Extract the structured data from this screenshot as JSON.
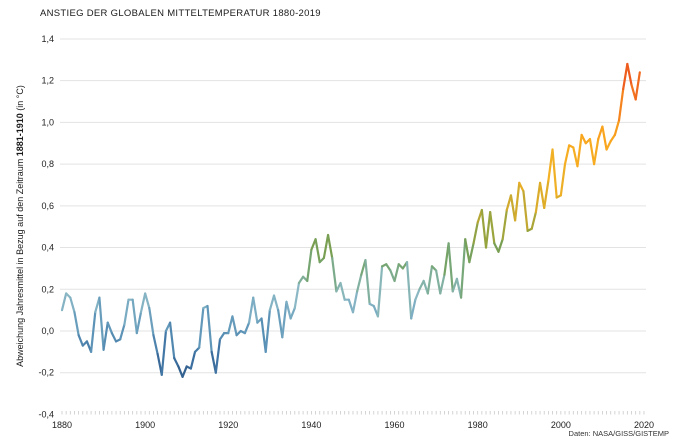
{
  "title": "ANSTIEG DER GLOBALEN MITTELTEMPERATUR 1880-2019",
  "source": "Daten: NASA/GISS/GISTEMP",
  "y_axis_label": {
    "prefix": "Abweichung Jahresmittel in Bezug auf den Zeitraum ",
    "bold": "1881-1910",
    "suffix": " (in °C)"
  },
  "chart_data": {
    "type": "line",
    "title": "ANSTIEG DER GLOBALEN MITTELTEMPERATUR 1880-2019",
    "ylabel": "Abweichung Jahresmittel in Bezug auf den Zeitraum 1881-1910 (in °C)",
    "xlabel": "",
    "x_start": 1880,
    "x_end": 2019,
    "xlim": [
      1879,
      2021
    ],
    "ylim": [
      -0.4,
      1.4
    ],
    "grid": true,
    "legend": "none",
    "x_ticks": [
      1880,
      1900,
      1920,
      1940,
      1960,
      1980,
      2000,
      2020
    ],
    "y_ticks": [
      {
        "v": 1.4,
        "label": "1,4"
      },
      {
        "v": 1.2,
        "label": "1,2"
      },
      {
        "v": 1.0,
        "label": "1,0"
      },
      {
        "v": 0.8,
        "label": "0,8"
      },
      {
        "v": 0.6,
        "label": "0,6"
      },
      {
        "v": 0.4,
        "label": "0,4"
      },
      {
        "v": 0.2,
        "label": "0,2"
      },
      {
        "v": 0.0,
        "label": "0,0"
      },
      {
        "v": -0.2,
        "label": "-0,2"
      },
      {
        "v": -0.4,
        "label": "-0,4"
      }
    ],
    "values": [
      0.1,
      0.18,
      0.16,
      0.09,
      -0.02,
      -0.07,
      -0.05,
      -0.1,
      0.09,
      0.16,
      -0.09,
      0.04,
      -0.01,
      -0.05,
      -0.04,
      0.03,
      0.15,
      0.15,
      -0.01,
      0.09,
      0.18,
      0.11,
      -0.02,
      -0.11,
      -0.21,
      0.0,
      0.04,
      -0.13,
      -0.17,
      -0.22,
      -0.17,
      -0.18,
      -0.1,
      -0.08,
      0.11,
      0.12,
      -0.1,
      -0.2,
      -0.04,
      -0.01,
      -0.01,
      0.07,
      -0.02,
      0.0,
      -0.01,
      0.04,
      0.16,
      0.04,
      0.06,
      -0.1,
      0.1,
      0.17,
      0.1,
      -0.03,
      0.14,
      0.06,
      0.11,
      0.23,
      0.26,
      0.24,
      0.39,
      0.44,
      0.33,
      0.35,
      0.46,
      0.35,
      0.19,
      0.23,
      0.15,
      0.15,
      0.09,
      0.19,
      0.27,
      0.34,
      0.13,
      0.12,
      0.07,
      0.31,
      0.32,
      0.29,
      0.24,
      0.32,
      0.3,
      0.33,
      0.06,
      0.15,
      0.2,
      0.24,
      0.18,
      0.31,
      0.29,
      0.18,
      0.27,
      0.42,
      0.19,
      0.25,
      0.16,
      0.44,
      0.33,
      0.42,
      0.52,
      0.58,
      0.4,
      0.57,
      0.42,
      0.38,
      0.44,
      0.58,
      0.65,
      0.53,
      0.71,
      0.67,
      0.48,
      0.49,
      0.57,
      0.71,
      0.59,
      0.72,
      0.87,
      0.64,
      0.65,
      0.8,
      0.89,
      0.88,
      0.79,
      0.94,
      0.9,
      0.92,
      0.8,
      0.92,
      0.98,
      0.87,
      0.91,
      0.94,
      1.01,
      1.16,
      1.28,
      1.18,
      1.11,
      1.24
    ],
    "color_stops": [
      [
        -0.25,
        "#2b5381"
      ],
      [
        -0.12,
        "#3f74a4"
      ],
      [
        0.0,
        "#5d94b7"
      ],
      [
        0.1,
        "#7cadc3"
      ],
      [
        0.17,
        "#8bb8c4"
      ],
      [
        0.25,
        "#7fae96"
      ],
      [
        0.33,
        "#74a369"
      ],
      [
        0.42,
        "#7a9e4f"
      ],
      [
        0.5,
        "#9da53d"
      ],
      [
        0.58,
        "#c4a832"
      ],
      [
        0.67,
        "#e6ae27"
      ],
      [
        0.8,
        "#f5b124"
      ],
      [
        0.93,
        "#f9a51e"
      ],
      [
        1.05,
        "#f78c1e"
      ],
      [
        1.16,
        "#f26f1e"
      ],
      [
        1.3,
        "#e8481d"
      ]
    ],
    "colors": {
      "grid": "#e3e3e3",
      "minor_tick": "#c9c9c9",
      "tick_label": "#222222",
      "title": "#1a1a1a"
    }
  }
}
